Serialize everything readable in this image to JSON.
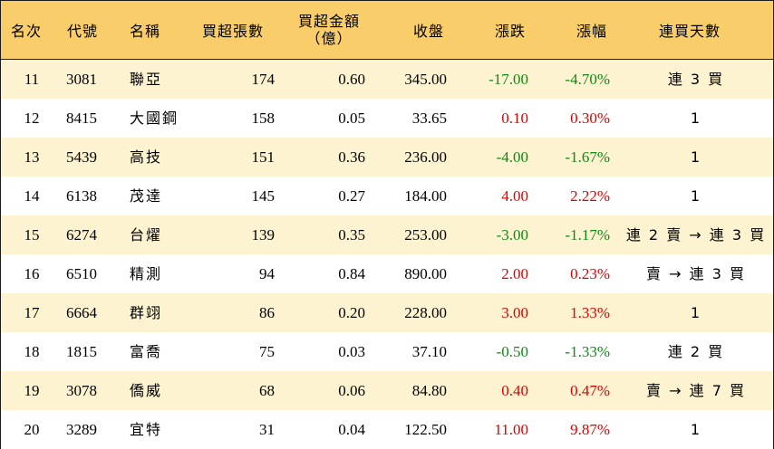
{
  "headers": {
    "rank": "名次",
    "code": "代號",
    "name": "名稱",
    "buy_lots": "買超張數",
    "buy_amount_line1": "買超金額",
    "buy_amount_line2": "（億）",
    "close": "收盤",
    "change": "漲跌",
    "change_pct": "漲幅",
    "streak": "連買天數"
  },
  "colors": {
    "header_bg": "#f8cd6a",
    "odd_row_bg": "#fdf3d0",
    "up": "#e10000",
    "down": "#0e8a16"
  },
  "rows": [
    {
      "rank": "11",
      "code": "3081",
      "name": "聯亞",
      "buy_lots": "174",
      "buy_amount": "0.60",
      "close": "345.00",
      "change": "-17.00",
      "change_pct": "-4.70%",
      "streak": "連 3 買",
      "dir": "down"
    },
    {
      "rank": "12",
      "code": "8415",
      "name": "大國鋼",
      "buy_lots": "158",
      "buy_amount": "0.05",
      "close": "33.65",
      "change": "0.10",
      "change_pct": "0.30%",
      "streak": "1",
      "dir": "up"
    },
    {
      "rank": "13",
      "code": "5439",
      "name": "高技",
      "buy_lots": "151",
      "buy_amount": "0.36",
      "close": "236.00",
      "change": "-4.00",
      "change_pct": "-1.67%",
      "streak": "1",
      "dir": "down"
    },
    {
      "rank": "14",
      "code": "6138",
      "name": "茂達",
      "buy_lots": "145",
      "buy_amount": "0.27",
      "close": "184.00",
      "change": "4.00",
      "change_pct": "2.22%",
      "streak": "1",
      "dir": "up"
    },
    {
      "rank": "15",
      "code": "6274",
      "name": "台燿",
      "buy_lots": "139",
      "buy_amount": "0.35",
      "close": "253.00",
      "change": "-3.00",
      "change_pct": "-1.17%",
      "streak": "連 2 賣 → 連 3 買",
      "dir": "down"
    },
    {
      "rank": "16",
      "code": "6510",
      "name": "精測",
      "buy_lots": "94",
      "buy_amount": "0.84",
      "close": "890.00",
      "change": "2.00",
      "change_pct": "0.23%",
      "streak": "賣 → 連 3 買",
      "dir": "up"
    },
    {
      "rank": "17",
      "code": "6664",
      "name": "群翊",
      "buy_lots": "86",
      "buy_amount": "0.20",
      "close": "228.00",
      "change": "3.00",
      "change_pct": "1.33%",
      "streak": "1",
      "dir": "up"
    },
    {
      "rank": "18",
      "code": "1815",
      "name": "富喬",
      "buy_lots": "75",
      "buy_amount": "0.03",
      "close": "37.10",
      "change": "-0.50",
      "change_pct": "-1.33%",
      "streak": "連 2 買",
      "dir": "down"
    },
    {
      "rank": "19",
      "code": "3078",
      "name": "僑威",
      "buy_lots": "68",
      "buy_amount": "0.06",
      "close": "84.80",
      "change": "0.40",
      "change_pct": "0.47%",
      "streak": "賣 → 連 7 買",
      "dir": "up"
    },
    {
      "rank": "20",
      "code": "3289",
      "name": "宜特",
      "buy_lots": "31",
      "buy_amount": "0.04",
      "close": "122.50",
      "change": "11.00",
      "change_pct": "9.87%",
      "streak": "1",
      "dir": "up"
    }
  ]
}
